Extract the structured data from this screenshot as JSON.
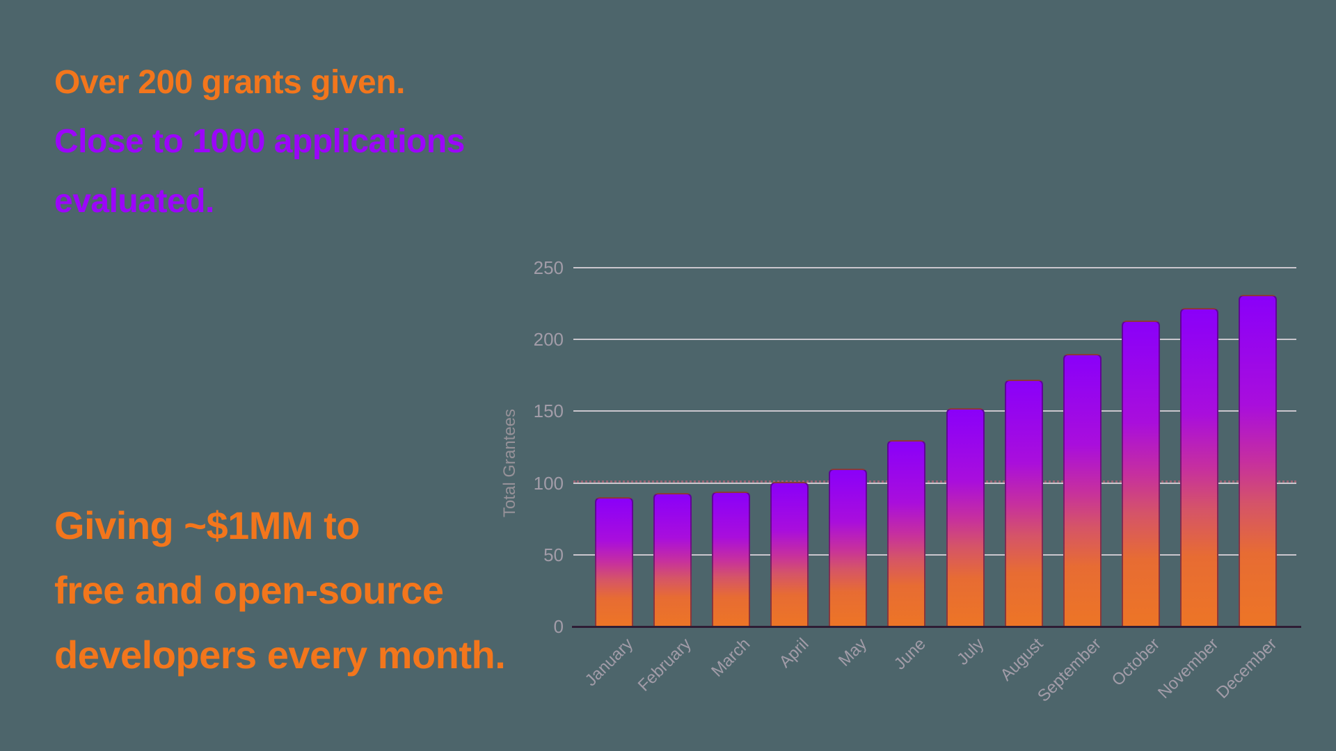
{
  "page": {
    "background_color": "#4D656B"
  },
  "hero": {
    "orange_top": {
      "text": "Over 200 grants given.",
      "color": "#F3761C"
    },
    "purple": {
      "color": "#9C05FA",
      "lines": [
        "Close to 1000 applications",
        "evaluated."
      ]
    },
    "orange_bottom": {
      "color": "#F3761C",
      "lines": [
        "Giving ~$1MM to",
        "free and open-source",
        "developers every month."
      ]
    }
  },
  "chart_data": {
    "type": "bar",
    "title": "",
    "categories": [
      "January",
      "February",
      "March",
      "April",
      "May",
      "June",
      "July",
      "August",
      "September",
      "October",
      "November",
      "December"
    ],
    "values": [
      90,
      93,
      94,
      101,
      110,
      130,
      152,
      172,
      190,
      213,
      222,
      231
    ],
    "xlabel": "",
    "ylabel": "Total Grantees",
    "ylim": [
      0,
      250
    ],
    "yticks": [
      0,
      50,
      100,
      150,
      200,
      250
    ],
    "grid": true,
    "legend": false,
    "tick_label_color": "#A29CA8",
    "ylabel_color": "#979299",
    "gridline_color": "#CBC7CE",
    "axis_line_color": "#2E1D35",
    "accent_dashed_gridline": {
      "at": 100,
      "color": "#E8647F"
    },
    "bar_gradient": [
      {
        "at": 0,
        "color": "#8A00F9"
      },
      {
        "at": 33,
        "color": "#A90EDC"
      },
      {
        "at": 50,
        "color": "#C62F9F"
      },
      {
        "at": 63,
        "color": "#D55468"
      },
      {
        "at": 78,
        "color": "#E76C33"
      },
      {
        "at": 100,
        "color": "#ED7526"
      }
    ]
  }
}
